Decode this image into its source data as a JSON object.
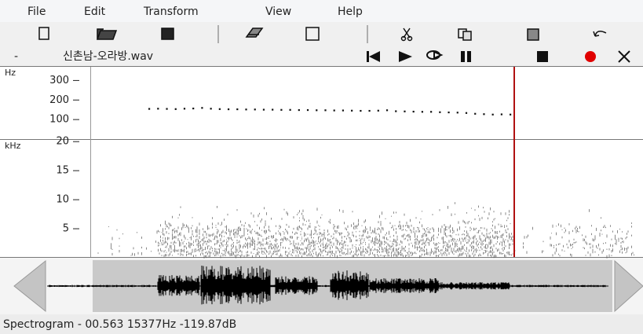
{
  "menu": [
    "File",
    "Edit",
    "Transform",
    "View",
    "Help"
  ],
  "transport_label": "-",
  "filename": "신촌남-오라방.wav",
  "pitch_panel": {
    "unit": "Hz",
    "ylim": [
      0,
      370
    ],
    "ticks": [
      300,
      200,
      100
    ],
    "values": [
      155,
      156,
      155,
      154,
      156,
      157,
      160,
      156,
      154,
      153,
      153,
      152,
      152,
      151,
      151,
      150,
      150,
      149,
      149,
      148,
      148,
      147,
      147,
      146,
      145,
      145,
      146,
      148,
      143,
      142,
      141,
      140,
      140,
      138,
      137,
      136,
      134,
      130,
      128,
      126,
      127,
      126
    ]
  },
  "spectrogram_panel": {
    "unit": "kHz",
    "ylim": [
      0,
      20.3
    ],
    "ticks": [
      20,
      15,
      10,
      5
    ]
  },
  "status": "Spectrogram - 00.563 15377Hz -119.87dB"
}
